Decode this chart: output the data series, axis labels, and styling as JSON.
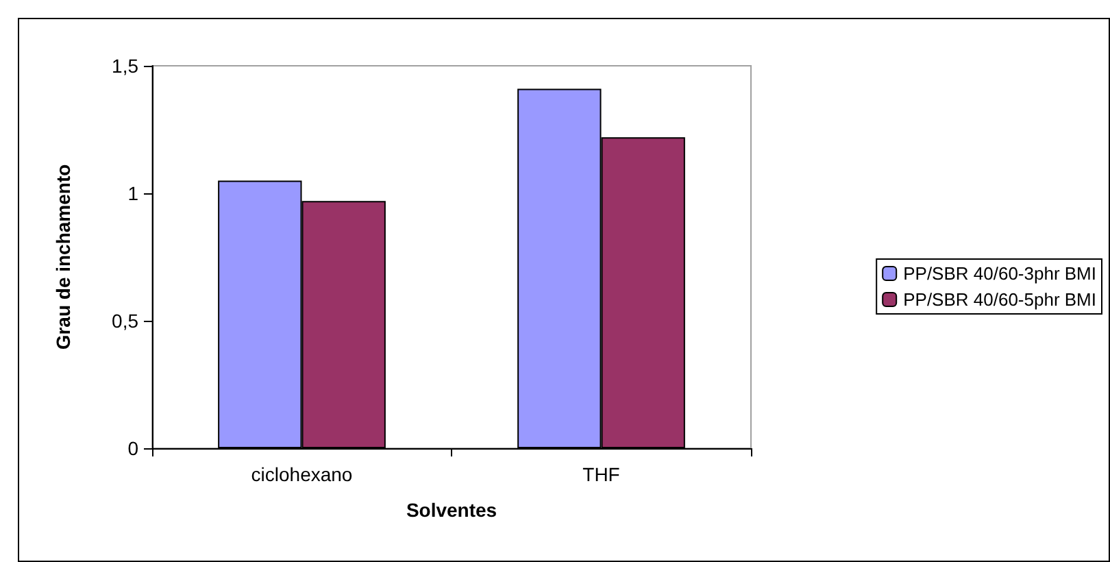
{
  "chart_data": {
    "type": "bar",
    "xlabel": "Solventes",
    "ylabel": "Grau de inchamento",
    "categories": [
      "ciclohexano",
      "THF"
    ],
    "series": [
      {
        "name": "PP/SBR 40/60-3phr BMI",
        "color": "#9999ff",
        "values": [
          1.05,
          1.41
        ]
      },
      {
        "name": "PP/SBR 40/60-5phr BMI",
        "color": "#993366",
        "values": [
          0.97,
          1.22
        ]
      }
    ],
    "ylim": [
      0,
      1.5
    ],
    "yticks": [
      0,
      {
        "value": 0.5,
        "label": "0,5"
      },
      1,
      {
        "value": 1.5,
        "label": "1,5"
      }
    ],
    "grid": false,
    "legend": "right"
  }
}
